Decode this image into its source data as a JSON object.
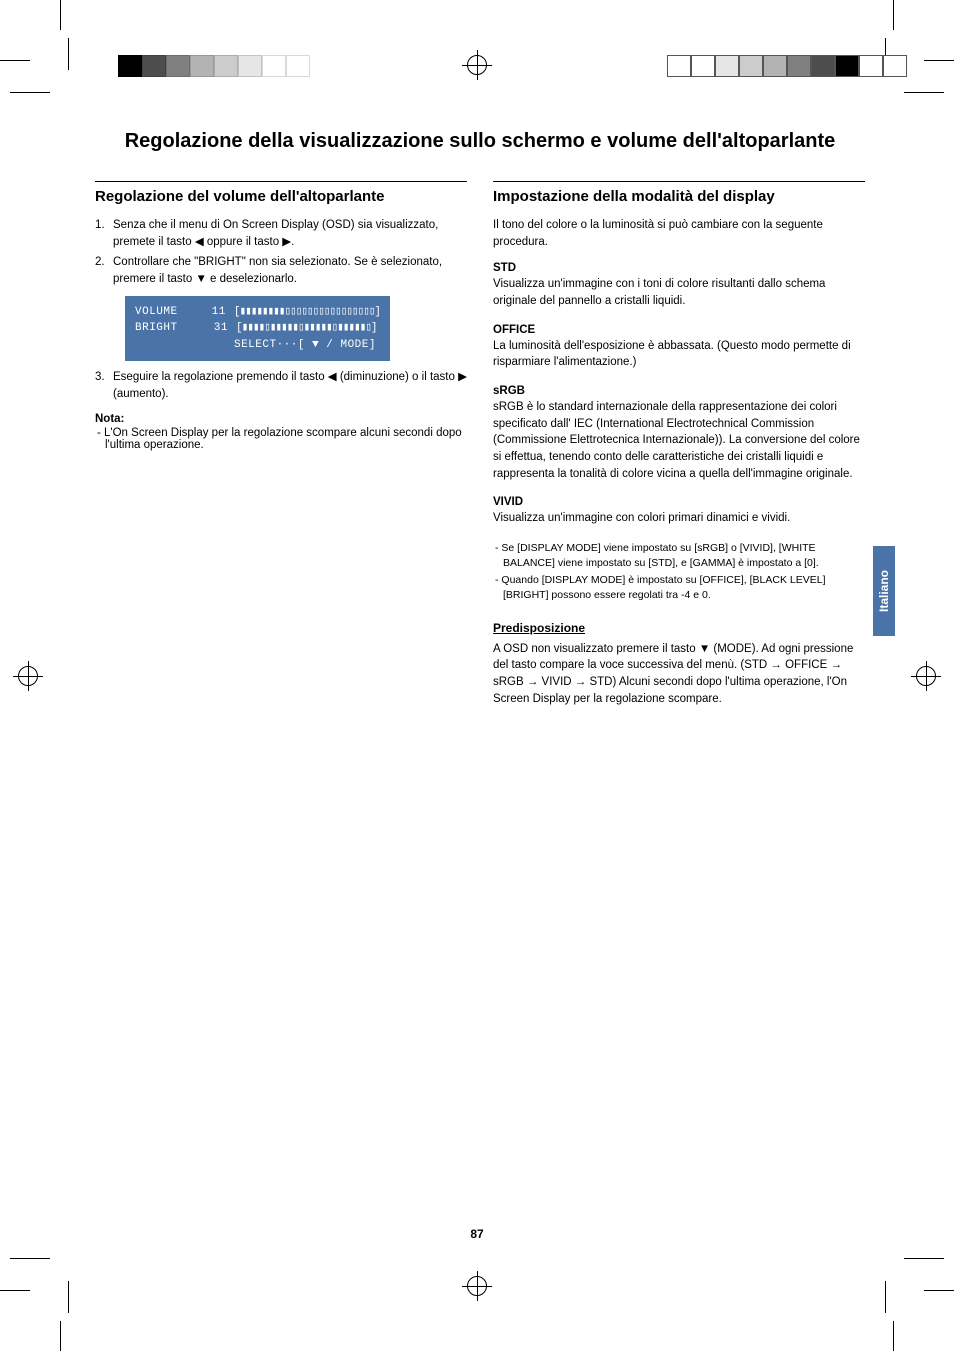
{
  "page_number": "87",
  "language_tab": "Italiano",
  "title": "Regolazione della visualizzazione sullo schermo e volume dell'altoparlante",
  "left": {
    "heading": "Regolazione del volume dell'altoparlante",
    "step1_num": "1.",
    "step1": "Senza che il menu di On Screen Display (OSD) sia visualizzato, premete il tasto ◀ oppure il tasto ▶.",
    "step2_num": "2.",
    "step2": "Controllare che \"BRIGHT\" non sia selezionato. Se è selezionato, premere il tasto ▼ e deselezionarlo.",
    "osd": {
      "row1_label": "VOLUME",
      "row1_val": "11",
      "row1_bar": "[▮▮▮▮▮▮▮▮▯▯▯▯▯▯▯▯▯▯▯▯▯▯▯▯]",
      "row2_label": "BRIGHT",
      "row2_val": "31",
      "row2_bar": "[▮▮▮▮▯▮▮▮▮▮▯▮▮▮▮▮▯▮▮▮▮▮▯]",
      "select": "SELECT···[ ▼ / MODE]"
    },
    "step3_num": "3.",
    "step3": "Eseguire la regolazione premendo il tasto ◀ (diminuzione) o il tasto ▶ (aumento).",
    "nota_label": "Nota:",
    "nota_text": "- L'On Screen Display per la regolazione scompare alcuni secondi dopo l'ultima operazione."
  },
  "right": {
    "heading": "Impostazione della modalità del display",
    "intro": "Il tono del colore o la luminosità si può cambiare con la seguente procedura.",
    "modes": [
      {
        "name": "STD",
        "desc": "Visualizza un'immagine con i toni di colore risultanti dallo schema originale del pannello a cristalli liquidi."
      },
      {
        "name": "OFFICE",
        "desc": "La luminosità dell'esposizione è abbassata. (Questo modo permette di risparmiare l'alimentazione.)"
      },
      {
        "name": "sRGB",
        "desc": "sRGB è lo standard internazionale della rappresentazione dei colori specificato dall' IEC (International Electrotechnical Commission (Commissione Elettrotecnica Internazionale)). La conversione del colore si effettua, tenendo conto delle caratteristiche dei cristalli liquidi e rappresenta la tonalità di colore vicina a quella dell'immagine originale."
      },
      {
        "name": "VIVID",
        "desc": "Visualizza un'immagine con colori primari dinamici e vividi."
      }
    ],
    "sub_notes": [
      "- Se [DISPLAY MODE] viene impostato su [sRGB] o [VIVID], [WHITE BALANCE] viene impostato su [STD], e [GAMMA] è impostato a [0].",
      "- Quando [DISPLAY MODE] è impostato su [OFFICE], [BLACK LEVEL] [BRIGHT] possono essere regolati tra -4 e 0."
    ],
    "predisp_heading": "Predisposizione",
    "predisp_text": "A OSD non visualizzato premere il tasto ▼ (MODE). Ad ogni pressione del tasto compare la voce successiva del menù. (STD → OFFICE → sRGB → VIVID → STD) Alcuni secondi dopo l'ultima operazione, l'On Screen Display per la regolazione scompare."
  },
  "color_bar_left": [
    "#000000",
    "#4d4d4d",
    "#808080",
    "#b3b3b3",
    "#cccccc",
    "#e6e6e6",
    "#ffffff",
    "#ffffff"
  ],
  "color_bar_right": [
    "#ffffff",
    "#ffffff",
    "#e6e6e6",
    "#cccccc",
    "#b3b3b3",
    "#808080",
    "#4d4d4d",
    "#000000",
    "#ffffff",
    "#ffffff"
  ],
  "accent_color": "#4a74a8"
}
